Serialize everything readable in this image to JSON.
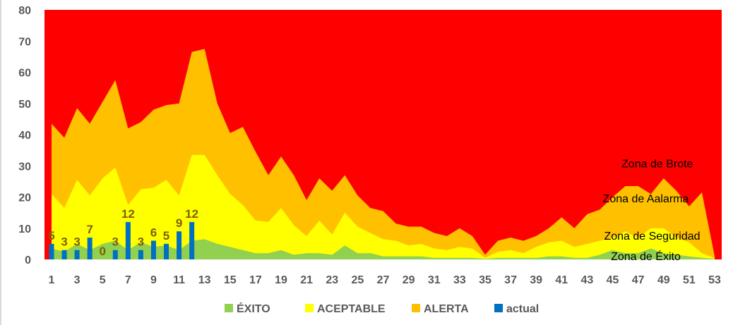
{
  "chart_data": {
    "type": "area",
    "x": [
      1,
      2,
      3,
      4,
      5,
      6,
      7,
      8,
      9,
      10,
      11,
      12,
      13,
      14,
      15,
      16,
      17,
      18,
      19,
      20,
      21,
      22,
      23,
      24,
      25,
      26,
      27,
      28,
      29,
      30,
      31,
      32,
      33,
      34,
      35,
      36,
      37,
      38,
      39,
      40,
      41,
      42,
      43,
      44,
      45,
      46,
      47,
      48,
      49,
      50,
      51,
      52,
      53
    ],
    "x_tick_labels": [
      "1",
      "3",
      "5",
      "7",
      "9",
      "11",
      "13",
      "15",
      "17",
      "19",
      "21",
      "23",
      "25",
      "27",
      "29",
      "31",
      "33",
      "35",
      "37",
      "39",
      "41",
      "43",
      "45",
      "47",
      "49",
      "51",
      "53"
    ],
    "ylim": [
      0,
      80
    ],
    "y_ticks": [
      0,
      10,
      20,
      30,
      40,
      50,
      60,
      70,
      80
    ],
    "grid": false,
    "legend_position": "bottom",
    "background_zone_color": "#ff0000",
    "series": [
      {
        "name": "ALERTA",
        "kind": "area",
        "color": "#ffc000",
        "values": [
          43.5,
          39,
          48.5,
          43.5,
          50.5,
          57.5,
          42,
          44,
          48,
          49.5,
          50,
          66.5,
          67.5,
          50,
          40.5,
          42.5,
          34.5,
          27,
          33,
          27,
          19,
          26,
          22,
          27,
          20.5,
          16.5,
          15.5,
          11.5,
          10.5,
          10.5,
          8.5,
          7.5,
          10,
          7.5,
          1.5,
          6,
          7,
          6,
          7.5,
          10,
          13.5,
          10,
          14.5,
          16,
          20,
          23.5,
          23.5,
          21,
          26,
          22,
          17,
          21.5,
          1
        ]
      },
      {
        "name": "ACEPTABLE",
        "kind": "area",
        "color": "#ffff00",
        "values": [
          21,
          16.5,
          25.5,
          20.5,
          26,
          29.5,
          17.5,
          22.5,
          23,
          25.5,
          20.5,
          33.5,
          33.5,
          27,
          21,
          17.5,
          12.5,
          12,
          16.5,
          11,
          7.5,
          12.5,
          8,
          15,
          10.5,
          8.5,
          6.5,
          6,
          4.5,
          5,
          3.5,
          3,
          4,
          3.5,
          0.5,
          2.5,
          3,
          2,
          4,
          5.5,
          6,
          4,
          5,
          6,
          7,
          9,
          7,
          10,
          10,
          7,
          5.5,
          2,
          0.5
        ]
      },
      {
        "name": "ÉXITO",
        "kind": "area",
        "color": "#92d050",
        "values": [
          3.5,
          2.5,
          5,
          3,
          5,
          6,
          3,
          5.5,
          4,
          4.5,
          3,
          6,
          6.5,
          5,
          4,
          3,
          2,
          2,
          3,
          1.5,
          2,
          2,
          1.5,
          4.5,
          2,
          2,
          1,
          1,
          1,
          1,
          0.5,
          0.5,
          0.5,
          0.5,
          0.2,
          0.5,
          0.5,
          0.5,
          0.5,
          1,
          1,
          0.5,
          0.5,
          1.5,
          3,
          2,
          2,
          3.5,
          2,
          1.5,
          1,
          0.5,
          0.2
        ]
      },
      {
        "name": "actual",
        "kind": "bar",
        "color": "#0070c0",
        "x": [
          1,
          2,
          3,
          4,
          5,
          6,
          7,
          8,
          9,
          10,
          11,
          12
        ],
        "values": [
          5,
          3,
          3,
          7,
          0,
          3,
          12,
          3,
          6,
          5,
          9,
          12
        ],
        "labels": [
          "5",
          "3",
          "3",
          "7",
          "0",
          "3",
          "12",
          "3",
          "6",
          "5",
          "9",
          "12"
        ]
      }
    ],
    "annotations": [
      {
        "text": "Zona de Brote",
        "x": 48.5,
        "y": 29.5
      },
      {
        "text": "Zona de Aalarma",
        "x": 47.6,
        "y": 18.3
      },
      {
        "text": "Zona de Seguridad",
        "x": 48.1,
        "y": 6.3
      },
      {
        "text": "Zona de Éxito",
        "x": 47.6,
        "y": -0.2
      }
    ],
    "legend": [
      {
        "label": "ÉXITO",
        "color": "#92d050"
      },
      {
        "label": "ACEPTABLE",
        "color": "#ffff00"
      },
      {
        "label": "ALERTA",
        "color": "#ffc000"
      },
      {
        "label": "actual",
        "color": "#0070c0"
      }
    ]
  }
}
